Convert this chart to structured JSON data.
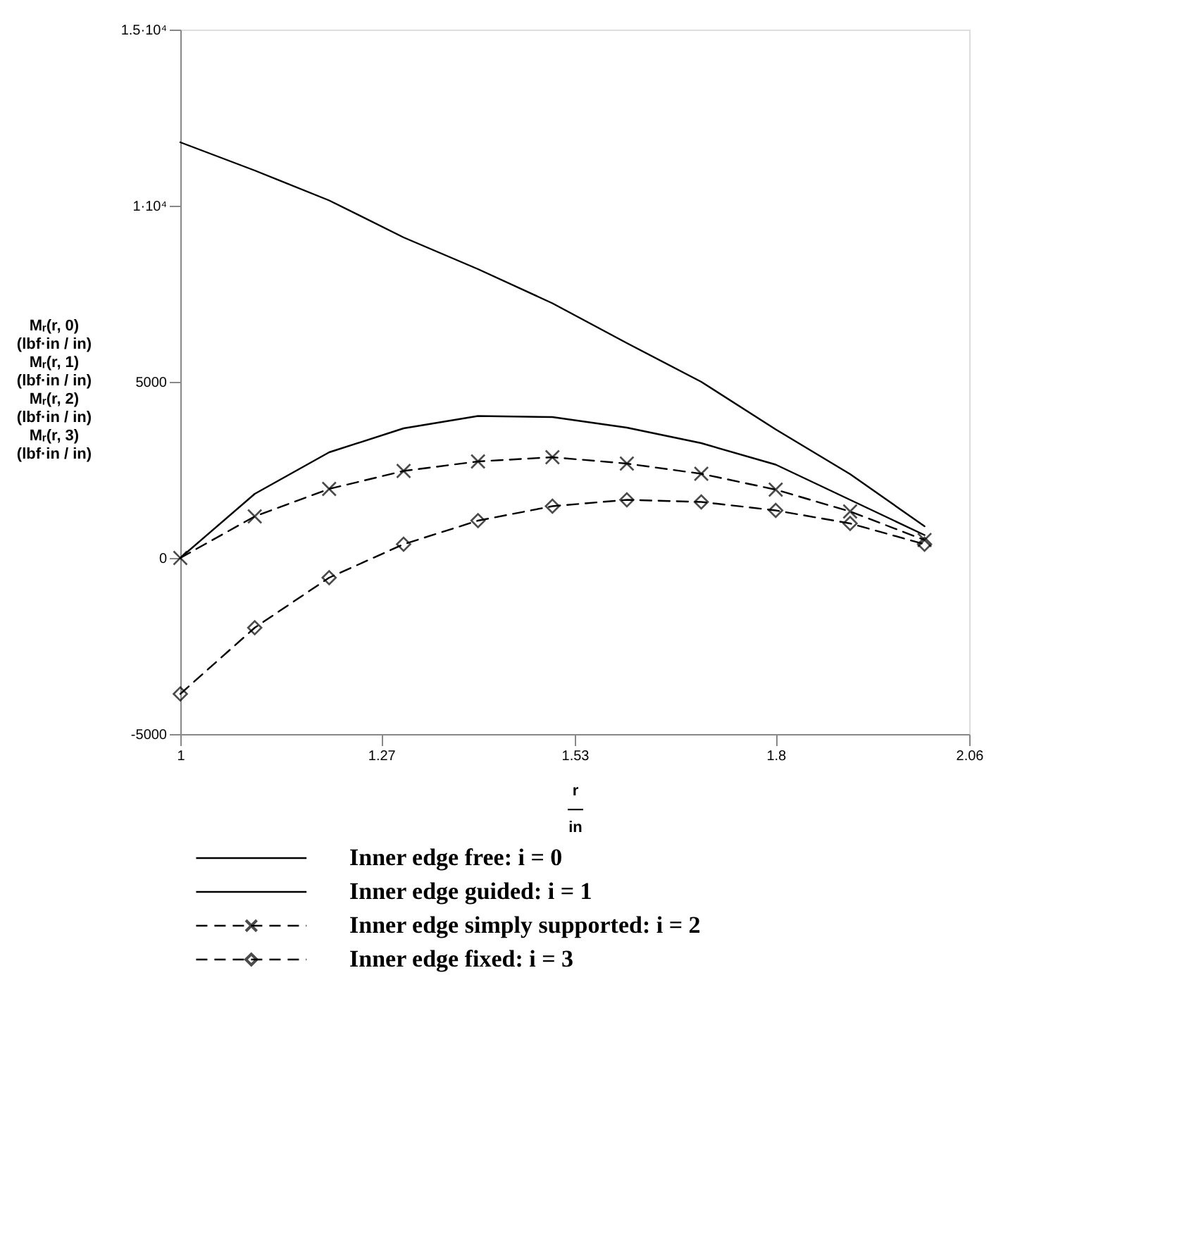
{
  "chart_data": {
    "type": "line",
    "xlabel": "r\n―\nin",
    "ylabel": "Mᵣ(r, 0)\n(lbf·in / in)\nMᵣ(r, 1)\n(lbf·in / in)\nMᵣ(r, 2)\n(lbf·in / in)\nMᵣ(r, 3)\n(lbf·in / in)",
    "x": [
      1,
      1.1,
      1.2,
      1.3,
      1.4,
      1.5,
      1.6,
      1.7,
      1.8,
      1.9,
      2.0
    ],
    "series": [
      {
        "name": "Inner edge free: i = 0",
        "color": "#000000",
        "marker": "none",
        "line_style": "solid",
        "values": [
          11800,
          11000,
          10150,
          9100,
          8200,
          7230,
          6100,
          5000,
          3650,
          2380,
          900
        ]
      },
      {
        "name": "Inner edge guided: i = 1",
        "color": "#000000",
        "marker": "none",
        "line_style": "solid",
        "values": [
          0,
          1820,
          3000,
          3680,
          4030,
          4000,
          3700,
          3260,
          2650,
          1650,
          650
        ]
      },
      {
        "name": "Inner edge simply supported: i = 2",
        "color": "#000000",
        "marker": "cross",
        "line_style": "dashed",
        "values": [
          0,
          1180,
          1960,
          2470,
          2740,
          2860,
          2680,
          2390,
          1940,
          1320,
          510
        ]
      },
      {
        "name": "Inner edge fixed: i = 3",
        "color": "#000000",
        "marker": "diamond",
        "line_style": "dashed",
        "values": [
          -3860,
          -1980,
          -560,
          390,
          1060,
          1470,
          1650,
          1590,
          1350,
          980,
          390
        ]
      }
    ],
    "xlim": [
      1,
      2.06
    ],
    "xticks": [
      1,
      1.27,
      1.53,
      1.8,
      2.06
    ],
    "ylim": [
      -5000,
      15000
    ],
    "yticks": [
      -5000,
      0,
      5000,
      {
        "value": 10000,
        "label": "1·10⁴"
      },
      {
        "value": 15000,
        "label": "1.5·10⁴"
      }
    ],
    "grid": false,
    "legend": "bottom"
  }
}
